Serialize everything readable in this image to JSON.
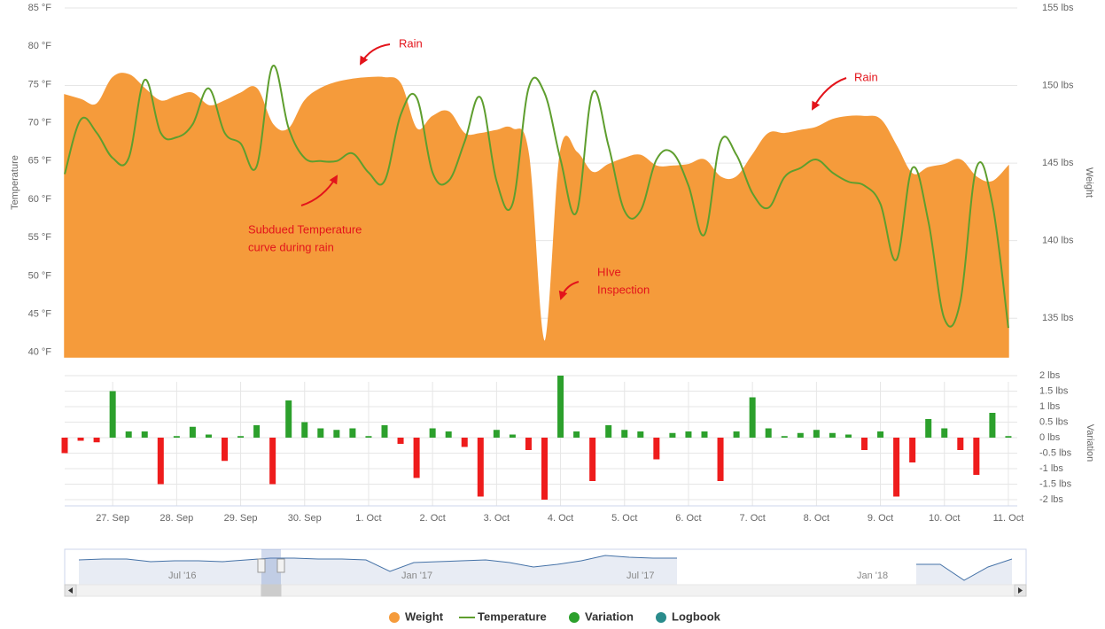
{
  "chart_data": [
    {
      "type": "area-line",
      "ylim": [
        39.4,
        85
      ],
      "yticks": [
        {
          "value": 40,
          "label": "40 °F"
        },
        {
          "value": 45,
          "label": "45 °F"
        },
        {
          "value": 50,
          "label": "50 °F"
        },
        {
          "value": 55,
          "label": "55 °F"
        },
        {
          "value": 60,
          "label": "60 °F"
        },
        {
          "value": 65,
          "label": "65 °F"
        },
        {
          "value": 70,
          "label": "70 °F"
        },
        {
          "value": 75,
          "label": "75 °F"
        },
        {
          "value": 80,
          "label": "80 °F"
        },
        {
          "value": 85,
          "label": "85 °F"
        }
      ],
      "y_title": "Temperature",
      "y2lim": [
        132.5,
        155
      ],
      "y2ticks": [
        {
          "value": 135,
          "label": "135 lbs"
        },
        {
          "value": 140,
          "label": "140 lbs"
        },
        {
          "value": 145,
          "label": "145 lbs"
        },
        {
          "value": 150,
          "label": "150 lbs"
        },
        {
          "value": 155,
          "label": "155 lbs"
        }
      ],
      "y2_title": "Weight",
      "grid": "y2",
      "series": [
        {
          "name": "Weight",
          "color": "#f59b3b",
          "kind": "area",
          "axis": "y2",
          "values": [
            149.4,
            149.1,
            148.8,
            150.5,
            150.7,
            149.8,
            149.0,
            149.3,
            149.5,
            148.7,
            149.0,
            149.5,
            149.8,
            147.5,
            147.2,
            149.0,
            149.8,
            150.2,
            150.4,
            150.5,
            150.5,
            150.1,
            147.2,
            148.0,
            148.3,
            146.9,
            146.9,
            147.1,
            147.2,
            145.5,
            133.5,
            145.7,
            145.7,
            144.4,
            144.9,
            145.3,
            145.5,
            144.8,
            144.8,
            144.9,
            145.2,
            144.1,
            144.1,
            145.5,
            146.9,
            146.9,
            147.1,
            147.3,
            147.8,
            148.0,
            148.0,
            147.8,
            146.1,
            144.3,
            144.7,
            144.9,
            145.2,
            144.1,
            143.8,
            144.8
          ]
        },
        {
          "name": "Temperature",
          "color": "#5e9e2e",
          "kind": "line",
          "values": [
            63.3,
            70.4,
            68.7,
            65.4,
            65.4,
            75.6,
            68.7,
            68.1,
            69.8,
            74.5,
            68.7,
            67.3,
            64.3,
            77.4,
            69.3,
            65.4,
            65.0,
            65.0,
            66.0,
            63.5,
            62.4,
            71.0,
            73.3,
            63.5,
            62.4,
            67.5,
            73.3,
            62.4,
            59.4,
            74.5,
            73.9,
            65.2,
            58.3,
            73.9,
            67.0,
            58.5,
            58.5,
            65.2,
            66.1,
            61.8,
            55.4,
            67.5,
            65.8,
            60.8,
            58.9,
            62.9,
            64.1,
            65.2,
            63.5,
            62.3,
            61.8,
            59.4,
            52.1,
            64.1,
            57.1,
            44.4,
            46.7,
            64.1,
            59.4,
            43.2
          ]
        }
      ],
      "logbook": {
        "name": "Logbook",
        "color": "#2a8c8c"
      },
      "annotations": [
        {
          "lines": [
            "Rain"
          ]
        },
        {
          "lines": [
            "Rain"
          ]
        },
        {
          "lines": [
            "Subdued Temperature",
            "curve during rain"
          ]
        },
        {
          "lines": [
            "HIve",
            "Inspection"
          ]
        }
      ],
      "annotation_color": "#e3141b"
    },
    {
      "type": "bar",
      "categories": [
        null,
        null,
        null,
        "27. Sep",
        null,
        null,
        null,
        "28. Sep",
        null,
        null,
        null,
        "29. Sep",
        null,
        null,
        null,
        "30. Sep",
        null,
        null,
        null,
        "1. Oct",
        null,
        null,
        null,
        "2. Oct",
        null,
        null,
        null,
        "3. Oct",
        null,
        null,
        null,
        "4. Oct",
        null,
        null,
        null,
        "5. Oct",
        null,
        null,
        null,
        "6. Oct",
        null,
        null,
        null,
        "7. Oct",
        null,
        null,
        null,
        "8. Oct",
        null,
        null,
        null,
        "9. Oct",
        null,
        null,
        null,
        "10. Oct",
        null,
        null,
        null,
        "11. Oct"
      ],
      "ylim": [
        -2.2,
        2
      ],
      "yticks": [
        {
          "value": 2,
          "label": "2 lbs"
        },
        {
          "value": 1.5,
          "label": "1.5 lbs"
        },
        {
          "value": 1,
          "label": "1 lbs"
        },
        {
          "value": 0.5,
          "label": "0.5 lbs"
        },
        {
          "value": 0,
          "label": "0 lbs"
        },
        {
          "value": -0.5,
          "label": "-0.5 lbs"
        },
        {
          "value": -1,
          "label": "-1 lbs"
        },
        {
          "value": -1.5,
          "label": "-1.5 lbs"
        },
        {
          "value": -2,
          "label": "-2 lbs"
        }
      ],
      "y_title": "Variation",
      "grid": true,
      "series": [
        {
          "name": "Variation",
          "color": "#2ca02c",
          "negative_color": "#ee1c1c",
          "values": [
            -0.5,
            -0.1,
            -0.15,
            1.5,
            0.2,
            0.2,
            -1.5,
            0.05,
            0.35,
            0.1,
            -0.75,
            0.05,
            0.4,
            -1.5,
            1.2,
            0.5,
            0.3,
            0.25,
            0.3,
            0.05,
            0.4,
            -0.2,
            -1.3,
            0.3,
            0.2,
            -0.3,
            -1.9,
            0.25,
            0.1,
            -0.4,
            -2.0,
            2.0,
            0.2,
            -1.4,
            0.4,
            0.25,
            0.2,
            -0.7,
            0.15,
            0.2,
            0.2,
            -1.4,
            0.2,
            1.3,
            0.3,
            0.05,
            0.15,
            0.25,
            0.15,
            0.1,
            -0.4,
            0.2,
            -1.9,
            -0.8,
            0.6,
            0.3,
            -0.4,
            -1.2,
            0.8,
            0.05
          ]
        }
      ]
    }
  ],
  "navigator": {
    "labels": [
      "Jul '16",
      "Jan '17",
      "Jul '17",
      "Jan '18"
    ],
    "color": "#4572a7",
    "values": [
      142,
      143.5,
      143.5,
      139,
      140.5,
      140.5,
      139,
      142,
      145,
      145,
      143.5,
      143.5,
      142,
      122.5,
      137.5,
      139,
      140.5,
      142,
      137.5,
      130,
      134.5,
      140.5,
      149.5,
      146.5,
      145,
      145,
      null,
      null,
      null,
      null,
      null,
      null,
      null,
      null,
      null,
      134.5,
      134.5,
      107.5,
      130,
      143.5
    ]
  }
}
